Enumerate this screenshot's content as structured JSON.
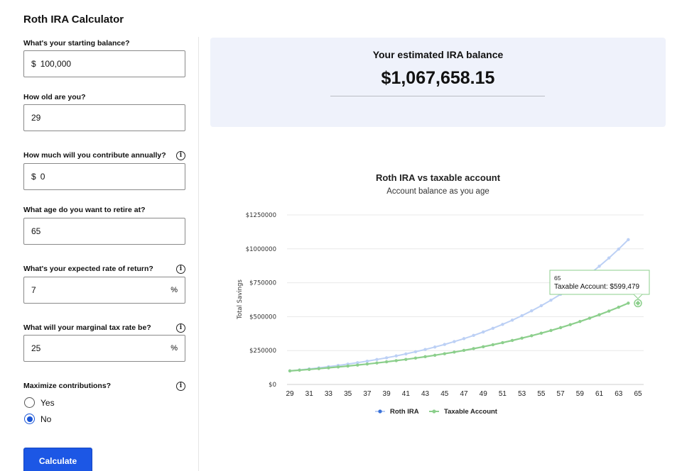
{
  "page_title": "Roth IRA Calculator",
  "form": {
    "starting_balance": {
      "label": "What's your starting balance?",
      "prefix": "$",
      "value": "100,000"
    },
    "age": {
      "label": "How old are you?",
      "value": "29"
    },
    "annual_contribution": {
      "label": "How much will you contribute annually?",
      "prefix": "$",
      "value": "0"
    },
    "retire_age": {
      "label": "What age do you want to retire at?",
      "value": "65"
    },
    "rate_of_return": {
      "label": "What's your expected rate of return?",
      "value": "7",
      "suffix": "%"
    },
    "tax_rate": {
      "label": "What will your marginal tax rate be?",
      "value": "25",
      "suffix": "%"
    },
    "maximize": {
      "label": "Maximize contributions?",
      "options": [
        "Yes",
        "No"
      ],
      "selected": "No"
    },
    "info_glyph": "i",
    "calculate_label": "Calculate"
  },
  "result": {
    "label": "Your estimated IRA balance",
    "value": "$1,067,658.15"
  },
  "chart": {
    "title": "Roth IRA vs taxable account",
    "subtitle": "Account balance as you age",
    "tooltip": {
      "age": "65",
      "text": "Taxable Account: $599,479"
    }
  },
  "chart_data": {
    "type": "line",
    "title": "Roth IRA vs taxable account",
    "subtitle": "Account balance as you age",
    "xlabel": "",
    "ylabel": "Total Savings",
    "x": [
      29,
      30,
      31,
      32,
      33,
      34,
      35,
      36,
      37,
      38,
      39,
      40,
      41,
      42,
      43,
      44,
      45,
      46,
      47,
      48,
      49,
      50,
      51,
      52,
      53,
      54,
      55,
      56,
      57,
      58,
      59,
      60,
      61,
      62,
      63,
      64,
      65
    ],
    "ylim": [
      0,
      1250000
    ],
    "y_ticks": [
      "$0",
      "$250000",
      "$500000",
      "$750000",
      "$1000000",
      "$1250000"
    ],
    "x_ticks": [
      "29",
      "31",
      "33",
      "35",
      "37",
      "39",
      "41",
      "43",
      "45",
      "47",
      "49",
      "51",
      "53",
      "55",
      "57",
      "59",
      "61",
      "63",
      "65"
    ],
    "legend_position": "bottom",
    "series": [
      {
        "name": "Roth IRA",
        "color": "#bcd0f5",
        "marker_color": "#3b72d9",
        "values": [
          100000,
          107000,
          114490,
          122504,
          131080,
          140255,
          150073,
          160578,
          171819,
          183846,
          196715,
          210485,
          225219,
          240985,
          257853,
          275903,
          295216,
          315882,
          337993,
          361653,
          386968,
          414056,
          443040,
          474053,
          507237,
          542743,
          580735,
          621387,
          664884,
          711426,
          761226,
          814511,
          871527,
          932534,
          997811,
          1067658,
          1067658
        ]
      },
      {
        "name": "Taxable Account",
        "color": "#8ccf8c",
        "marker_color": "#8ccf8c",
        "values": [
          100000,
          105250,
          110776,
          116591,
          122712,
          129155,
          135936,
          143072,
          150584,
          158489,
          166810,
          175568,
          184785,
          194486,
          204697,
          215444,
          226755,
          238659,
          251187,
          264375,
          278254,
          292862,
          308238,
          324420,
          341452,
          359378,
          378246,
          398103,
          419003,
          441001,
          464153,
          488521,
          514169,
          541163,
          569574,
          599479,
          599479
        ]
      }
    ]
  }
}
